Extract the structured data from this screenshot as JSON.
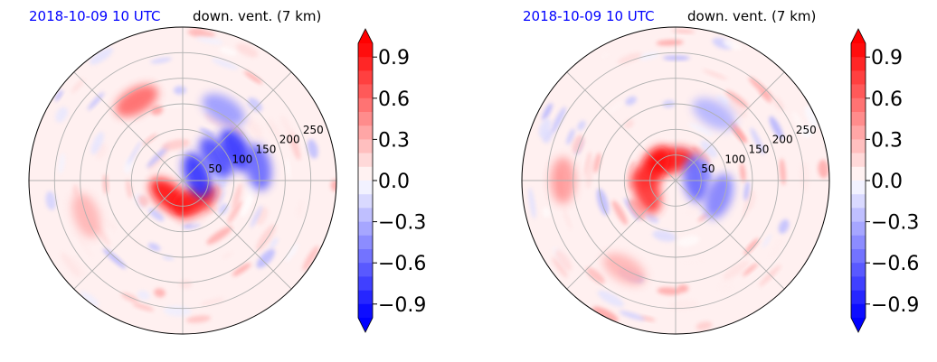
{
  "panels": [
    {
      "time_label": "2018-10-09 10 UTC",
      "title": "down. vent. (7 km)"
    },
    {
      "time_label": "2018-10-09 10 UTC",
      "title": "down. vent. (7 km)"
    }
  ],
  "chart_data": [
    {
      "type": "heatmap",
      "projection": "polar",
      "title": "down. vent. (7 km)",
      "subtitle": "2018-10-09 10 UTC",
      "radial_ticks": [
        50,
        100,
        150,
        200,
        250
      ],
      "radial_tick_labels": [
        "50",
        "100",
        "150",
        "200",
        "250"
      ],
      "radial_range": [
        0,
        300
      ],
      "grid": true,
      "colorbar": {
        "range": [
          -1.0,
          1.0
        ],
        "extend": "both",
        "ticks": [
          0.9,
          0.6,
          0.3,
          0.0,
          -0.3,
          -0.6,
          -0.9
        ],
        "tick_labels": [
          "0.9",
          "0.6",
          "0.3",
          "0.0",
          "−0.3",
          "−0.6",
          "−0.9"
        ],
        "cmap": "bwr",
        "colors": {
          "negative": "#0000ff",
          "zero": "#ffffff",
          "positive": "#ff0000"
        }
      },
      "features": [
        {
          "r": 40,
          "theta": 230,
          "value": 0.95
        },
        {
          "r": 45,
          "theta": 300,
          "value": 0.9
        },
        {
          "r": 30,
          "theta": 20,
          "value": -0.8
        },
        {
          "r": 80,
          "theta": 35,
          "value": -0.7
        },
        {
          "r": 120,
          "theta": 30,
          "value": -0.8
        },
        {
          "r": 150,
          "theta": 10,
          "value": -0.6
        },
        {
          "r": 180,
          "theta": 120,
          "value": 0.6
        },
        {
          "r": 200,
          "theta": 200,
          "value": 0.3
        },
        {
          "r": 160,
          "theta": 60,
          "value": -0.4
        }
      ]
    },
    {
      "type": "heatmap",
      "projection": "polar",
      "title": "down. vent. (7 km)",
      "subtitle": "2018-10-09 10 UTC",
      "radial_ticks": [
        50,
        100,
        150,
        200,
        250
      ],
      "radial_tick_labels": [
        "50",
        "100",
        "150",
        "200",
        "250"
      ],
      "radial_range": [
        0,
        300
      ],
      "grid": true,
      "colorbar": {
        "range": [
          -1.0,
          1.0
        ],
        "extend": "both",
        "ticks": [
          0.9,
          0.6,
          0.3,
          0.0,
          -0.3,
          -0.6,
          -0.9
        ],
        "tick_labels": [
          "0.9",
          "0.6",
          "0.3",
          "0.0",
          "−0.3",
          "−0.6",
          "−0.9"
        ],
        "cmap": "bwr",
        "colors": {
          "negative": "#0000ff",
          "zero": "#ffffff",
          "positive": "#ff0000"
        }
      },
      "features": [
        {
          "r": 40,
          "theta": 100,
          "value": 0.9
        },
        {
          "r": 50,
          "theta": 150,
          "value": 0.95
        },
        {
          "r": 60,
          "theta": 200,
          "value": 0.8
        },
        {
          "r": 40,
          "theta": 5,
          "value": -0.6
        },
        {
          "r": 90,
          "theta": 340,
          "value": -0.5
        },
        {
          "r": 150,
          "theta": 60,
          "value": -0.3
        },
        {
          "r": 220,
          "theta": 180,
          "value": 0.4
        },
        {
          "r": 200,
          "theta": 240,
          "value": 0.3
        }
      ]
    }
  ]
}
